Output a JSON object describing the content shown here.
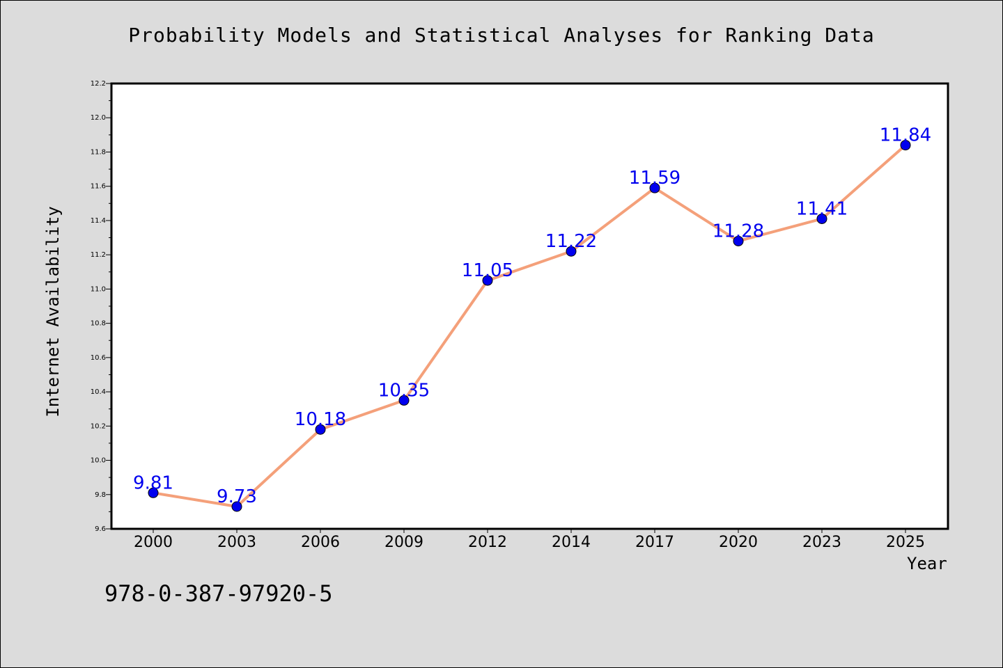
{
  "chart_data": {
    "type": "line",
    "title": "Probability Models and Statistical Analyses for Ranking Data",
    "xlabel": "Year",
    "ylabel": "Internet Availability",
    "categories": [
      "2000",
      "2003",
      "2006",
      "2009",
      "2012",
      "2014",
      "2017",
      "2020",
      "2023",
      "2025"
    ],
    "series": [
      {
        "values": [
          9.81,
          9.73,
          10.18,
          10.35,
          11.05,
          11.22,
          11.59,
          11.28,
          11.41,
          11.84
        ]
      }
    ],
    "data_labels": [
      "9.81",
      "9.73",
      "10.18",
      "10.35",
      "11.05",
      "11.22",
      "11.59",
      "11.28",
      "11.41",
      "11.84"
    ],
    "ylim": [
      9.6,
      12.2
    ],
    "yticks": [
      "9.6",
      "9.8",
      "10.0",
      "10.2",
      "10.4",
      "10.6",
      "10.8",
      "11.0",
      "11.2",
      "11.4",
      "11.6",
      "11.8",
      "12.0",
      "12.2"
    ],
    "grid": false,
    "line_color": "#f4a07a",
    "marker_color": "#0000ee",
    "label_color": "#0000ee"
  },
  "footer": {
    "isbn": "978-0-387-97920-5"
  }
}
